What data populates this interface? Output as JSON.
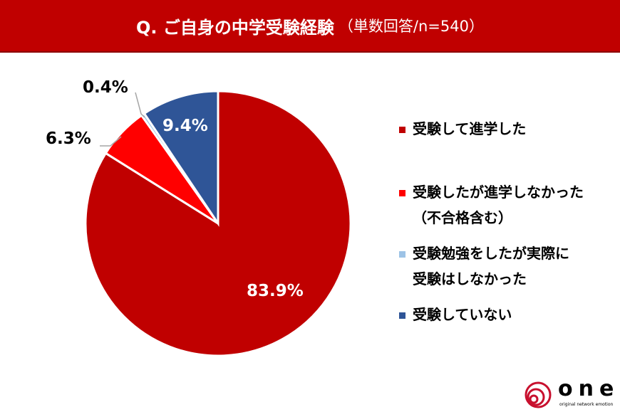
{
  "title": {
    "main": "Q. ご自身の中学受験経験",
    "sub": "（単数回答/n=540）"
  },
  "chart_data": {
    "type": "pie",
    "title": "Q. ご自身の中学受験経験（単数回答/n=540）",
    "start": "top",
    "direction": "clockwise",
    "slices": [
      {
        "name": "受験して進学した",
        "value": 83.9,
        "label": "83.9%",
        "color": "#c00000"
      },
      {
        "name": "受験したが進学しなかった（不合格含む）",
        "value": 6.3,
        "label": "6.3%",
        "color": "#ff0000"
      },
      {
        "name": "受験勉強をしたが実際に受験はしなかった",
        "value": 0.4,
        "label": "0.4%",
        "color": "#9dc3e6"
      },
      {
        "name": "受験していない",
        "value": 9.4,
        "label": "9.4%",
        "color": "#2f5597"
      }
    ],
    "legend_position": "right",
    "legend": [
      [
        "受験して進学した"
      ],
      [
        "受験したが進学しなかった",
        "（不合格含む）"
      ],
      [
        "受験勉強をしたが実際に",
        "受験はしなかった"
      ],
      [
        "受験していない"
      ]
    ]
  },
  "logo": {
    "text": "one",
    "tagline": "original network emotion"
  }
}
